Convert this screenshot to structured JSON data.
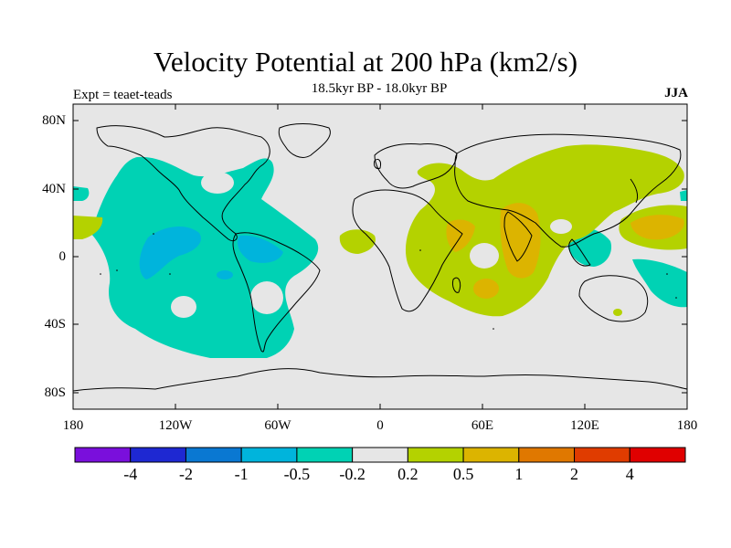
{
  "title": "Velocity Potential at 200 hPa (km2/s)",
  "subtitle": "18.5kyr BP - 18.0kyr BP",
  "left_label": "Expt = teaet-teads",
  "right_label": "JJA",
  "y_axis_labels": [
    "80N",
    "40N",
    "0",
    "40S",
    "80S"
  ],
  "x_axis_labels": [
    "180",
    "120W",
    "60W",
    "0",
    "60E",
    "120E",
    "180"
  ],
  "colorbar": {
    "colors": [
      "#7a0fdc",
      "#1e28d2",
      "#0a78d2",
      "#00b4dc",
      "#00d2b4",
      "#e6e6e6",
      "#b4d200",
      "#dcb400",
      "#e07800",
      "#e03c00",
      "#e00000"
    ],
    "labels": [
      "-4",
      "-2",
      "-1",
      "-0.5",
      "-0.2",
      "0.2",
      "0.5",
      "1",
      "2",
      "4"
    ]
  },
  "colors": {
    "background": "#e6e6e6",
    "negative_weak": "#00d2b4",
    "negative_mid": "#00b4dc",
    "positive_weak": "#b4d200",
    "positive_mid": "#dcb400"
  }
}
